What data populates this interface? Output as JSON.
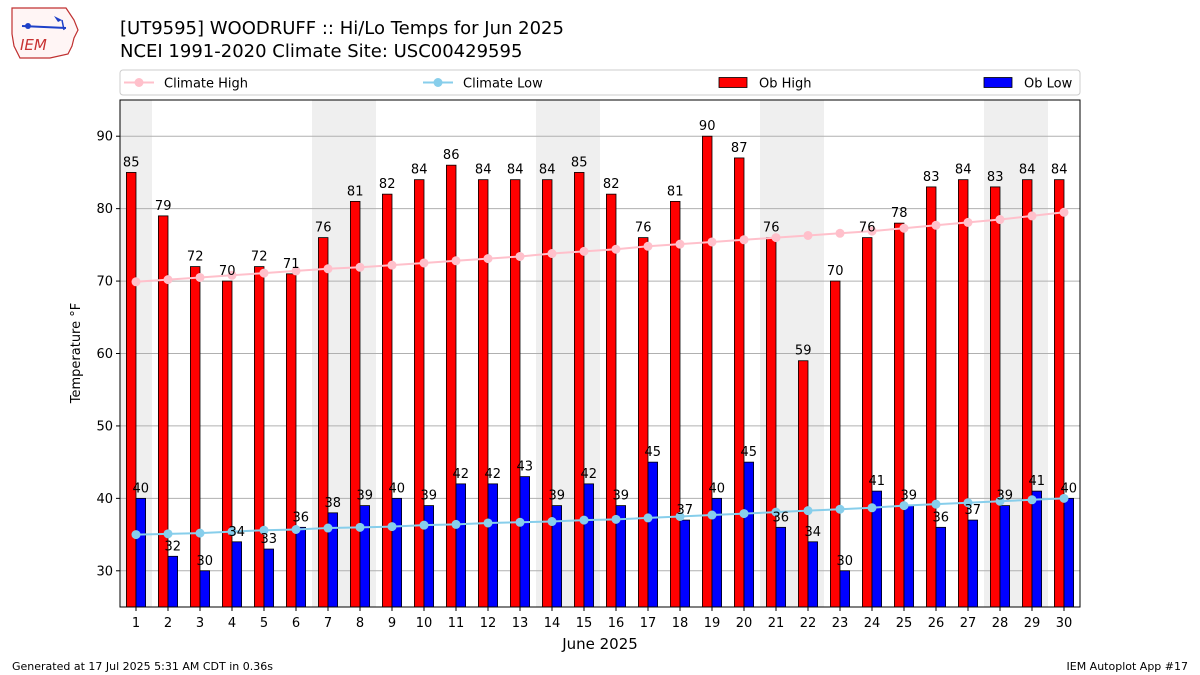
{
  "header": {
    "title_line1": "[UT9595] WOODRUFF :: Hi/Lo Temps for Jun 2025",
    "title_line2": "NCEI 1991-2020 Climate Site: USC00429595",
    "logo_text": "IEM"
  },
  "footer": {
    "generated": "Generated at 17 Jul 2025 5:31 AM CDT in 0.36s",
    "app": "IEM Autoplot App #17"
  },
  "chart_data": {
    "type": "bar",
    "title": "[UT9595] WOODRUFF :: Hi/Lo Temps for Jun 2025",
    "subtitle": "NCEI 1991-2020 Climate Site: USC00429595",
    "xlabel": "June 2025",
    "ylabel": "Temperature °F",
    "ylim": [
      25,
      95
    ],
    "yticks": [
      30,
      40,
      50,
      60,
      70,
      80,
      90
    ],
    "grid": "horizontal",
    "legend_placement": "top",
    "weekend_shading": [
      1,
      7,
      8,
      14,
      15,
      21,
      22,
      28,
      29
    ],
    "categories": [
      "1",
      "2",
      "3",
      "4",
      "5",
      "6",
      "7",
      "8",
      "9",
      "10",
      "11",
      "12",
      "13",
      "14",
      "15",
      "16",
      "17",
      "18",
      "19",
      "20",
      "21",
      "22",
      "23",
      "24",
      "25",
      "26",
      "27",
      "28",
      "29",
      "30"
    ],
    "series": [
      {
        "name": "Ob High",
        "kind": "bar",
        "color": "#ff0000",
        "values": [
          85,
          79,
          72,
          70,
          72,
          71,
          76,
          81,
          82,
          84,
          86,
          84,
          84,
          84,
          85,
          82,
          76,
          81,
          90,
          87,
          76,
          59,
          70,
          76,
          78,
          83,
          84,
          83,
          84,
          84
        ]
      },
      {
        "name": "Ob Low",
        "kind": "bar",
        "color": "#0000ff",
        "values": [
          40,
          32,
          30,
          34,
          33,
          36,
          38,
          39,
          40,
          39,
          42,
          42,
          43,
          39,
          42,
          39,
          45,
          37,
          40,
          45,
          36,
          34,
          30,
          41,
          39,
          36,
          37,
          39,
          41,
          40
        ]
      },
      {
        "name": "Climate High",
        "kind": "line",
        "color": "#ffc0cb",
        "values": [
          69.9,
          70.2,
          70.5,
          70.8,
          71.1,
          71.4,
          71.7,
          71.9,
          72.2,
          72.5,
          72.8,
          73.1,
          73.4,
          73.8,
          74.1,
          74.4,
          74.8,
          75.1,
          75.4,
          75.7,
          76.0,
          76.3,
          76.6,
          76.9,
          77.3,
          77.7,
          78.1,
          78.5,
          79.0,
          79.5
        ]
      },
      {
        "name": "Climate Low",
        "kind": "line",
        "color": "#87ceeb",
        "values": [
          35.0,
          35.1,
          35.2,
          35.4,
          35.6,
          35.7,
          35.9,
          36.0,
          36.1,
          36.3,
          36.4,
          36.6,
          36.7,
          36.8,
          37.0,
          37.1,
          37.3,
          37.5,
          37.7,
          37.9,
          38.1,
          38.3,
          38.5,
          38.7,
          39.0,
          39.2,
          39.4,
          39.6,
          39.8,
          40.0
        ]
      }
    ]
  }
}
